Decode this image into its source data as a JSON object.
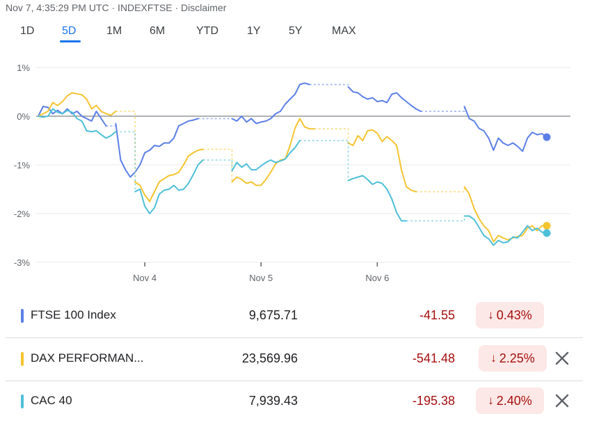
{
  "header": {
    "text": "Nov 7, 4:35:29 PM UTC · INDEXFTSE · Disclaimer"
  },
  "tabs": [
    {
      "label": "1D",
      "active": false
    },
    {
      "label": "5D",
      "active": true
    },
    {
      "label": "1M",
      "active": false
    },
    {
      "label": "6M",
      "active": false
    },
    {
      "label": "YTD",
      "active": false
    },
    {
      "label": "1Y",
      "active": false
    },
    {
      "label": "5Y",
      "active": false
    },
    {
      "label": "MAX",
      "active": false
    }
  ],
  "chart_data": {
    "type": "line",
    "y_unit": "%",
    "ylim": [
      -3,
      1
    ],
    "y_ticks": [
      "1%",
      "0%",
      "-1%",
      "-2%",
      "-3%"
    ],
    "x_ticks": [
      "Nov 4",
      "Nov 5",
      "Nov 6"
    ],
    "grid": true,
    "series": [
      {
        "name": "FTSE 100 Index",
        "color": "#5b7fe6",
        "segments": [
          [
            [
              0,
              0
            ],
            [
              0.25,
              0.2
            ],
            [
              0.5,
              0.18
            ],
            [
              0.75,
              0.05
            ],
            [
              1,
              0.12
            ],
            [
              1.25,
              0.05
            ],
            [
              1.5,
              0.15
            ],
            [
              1.75,
              0.05
            ],
            [
              2,
              0.1
            ],
            [
              2.25,
              0.0
            ],
            [
              2.5,
              -0.05
            ],
            [
              2.75,
              -0.1
            ],
            [
              3,
              0.1
            ],
            [
              3.25,
              -0.05
            ],
            [
              3.5,
              -0.2
            ]
          ],
          [
            [
              4,
              -0.15
            ],
            [
              4.25,
              -0.9
            ],
            [
              4.5,
              -1.1
            ],
            [
              4.75,
              -1.25
            ],
            [
              5,
              -1.15
            ],
            [
              5.25,
              -1.0
            ],
            [
              5.5,
              -0.75
            ],
            [
              5.75,
              -0.7
            ],
            [
              6,
              -0.6
            ],
            [
              6.25,
              -0.62
            ],
            [
              6.5,
              -0.55
            ],
            [
              6.75,
              -0.55
            ],
            [
              7,
              -0.45
            ],
            [
              7.25,
              -0.2
            ],
            [
              7.5,
              -0.15
            ],
            [
              7.75,
              -0.1
            ],
            [
              8,
              -0.08
            ],
            [
              8.25,
              -0.05
            ]
          ],
          [
            [
              10,
              -0.05
            ],
            [
              10.25,
              -0.1
            ],
            [
              10.5,
              0.0
            ],
            [
              10.75,
              -0.12
            ],
            [
              11,
              -0.05
            ],
            [
              11.25,
              -0.15
            ],
            [
              11.5,
              -0.12
            ],
            [
              11.75,
              -0.1
            ],
            [
              12,
              -0.05
            ],
            [
              12.25,
              0.05
            ],
            [
              12.5,
              0.1
            ],
            [
              12.75,
              0.25
            ],
            [
              13,
              0.35
            ],
            [
              13.25,
              0.45
            ],
            [
              13.5,
              0.65
            ],
            [
              13.75,
              0.68
            ],
            [
              14,
              0.65
            ]
          ],
          [
            [
              16,
              0.6
            ],
            [
              16.25,
              0.5
            ],
            [
              16.5,
              0.48
            ],
            [
              16.75,
              0.4
            ],
            [
              17,
              0.35
            ],
            [
              17.25,
              0.38
            ],
            [
              17.5,
              0.3
            ],
            [
              17.75,
              0.32
            ],
            [
              18,
              0.28
            ],
            [
              18.25,
              0.45
            ],
            [
              18.5,
              0.48
            ],
            [
              18.75,
              0.38
            ],
            [
              19,
              0.3
            ],
            [
              19.25,
              0.22
            ],
            [
              19.5,
              0.15
            ],
            [
              19.75,
              0.1
            ]
          ],
          [
            [
              22,
              0.2
            ],
            [
              22.25,
              -0.05
            ],
            [
              22.5,
              -0.1
            ],
            [
              22.75,
              -0.25
            ],
            [
              23,
              -0.3
            ],
            [
              23.25,
              -0.45
            ],
            [
              23.5,
              -0.7
            ],
            [
              23.75,
              -0.45
            ],
            [
              24,
              -0.55
            ],
            [
              24.25,
              -0.6
            ],
            [
              24.5,
              -0.55
            ],
            [
              24.75,
              -0.62
            ],
            [
              25,
              -0.72
            ],
            [
              25.25,
              -0.45
            ],
            [
              25.5,
              -0.33
            ],
            [
              25.75,
              -0.38
            ],
            [
              26,
              -0.36
            ],
            [
              26.25,
              -0.43
            ]
          ]
        ]
      },
      {
        "name": "DAX PERFORMANCE-INDEX",
        "color": "#f4c430",
        "segments": [
          [
            [
              0,
              0
            ],
            [
              0.25,
              0.05
            ],
            [
              0.5,
              0.1
            ],
            [
              0.75,
              0.28
            ],
            [
              1,
              0.22
            ],
            [
              1.25,
              0.3
            ],
            [
              1.5,
              0.42
            ],
            [
              1.75,
              0.48
            ],
            [
              2,
              0.46
            ],
            [
              2.25,
              0.44
            ],
            [
              2.5,
              0.35
            ],
            [
              2.75,
              0.15
            ],
            [
              3,
              0.22
            ],
            [
              3.25,
              0.1
            ],
            [
              3.5,
              0.05
            ],
            [
              3.75,
              0.02
            ],
            [
              4,
              0.1
            ]
          ],
          [
            [
              5,
              -1.35
            ],
            [
              5.25,
              -1.42
            ],
            [
              5.5,
              -1.62
            ],
            [
              5.75,
              -1.75
            ],
            [
              6,
              -1.55
            ],
            [
              6.25,
              -1.35
            ],
            [
              6.5,
              -1.28
            ],
            [
              6.75,
              -1.22
            ],
            [
              7,
              -1.2
            ],
            [
              7.25,
              -1.15
            ],
            [
              7.5,
              -1.0
            ],
            [
              7.75,
              -0.82
            ],
            [
              8,
              -0.75
            ],
            [
              8.25,
              -0.7
            ],
            [
              8.5,
              -0.68
            ]
          ],
          [
            [
              10,
              -1.35
            ],
            [
              10.25,
              -1.25
            ],
            [
              10.5,
              -1.3
            ],
            [
              10.75,
              -1.38
            ],
            [
              11,
              -1.35
            ],
            [
              11.25,
              -1.42
            ],
            [
              11.5,
              -1.42
            ],
            [
              11.75,
              -1.3
            ],
            [
              12,
              -1.15
            ],
            [
              12.25,
              -0.98
            ],
            [
              12.5,
              -0.9
            ],
            [
              12.75,
              -0.88
            ],
            [
              13,
              -0.6
            ],
            [
              13.25,
              -0.25
            ],
            [
              13.5,
              -0.05
            ],
            [
              13.75,
              -0.22
            ],
            [
              14,
              -0.26
            ],
            [
              14.25,
              -0.26
            ]
          ],
          [
            [
              16,
              -0.55
            ],
            [
              16.25,
              -0.6
            ],
            [
              16.5,
              -0.4
            ],
            [
              16.75,
              -0.5
            ],
            [
              17,
              -0.3
            ],
            [
              17.25,
              -0.28
            ],
            [
              17.5,
              -0.35
            ],
            [
              17.75,
              -0.52
            ],
            [
              18,
              -0.42
            ],
            [
              18.25,
              -0.5
            ],
            [
              18.5,
              -0.6
            ],
            [
              18.75,
              -1.1
            ],
            [
              19,
              -1.45
            ],
            [
              19.25,
              -1.52
            ],
            [
              19.5,
              -1.55
            ]
          ],
          [
            [
              22,
              -1.45
            ],
            [
              22.25,
              -1.6
            ],
            [
              22.5,
              -1.9
            ],
            [
              22.75,
              -2.1
            ],
            [
              23,
              -2.25
            ],
            [
              23.25,
              -2.35
            ],
            [
              23.5,
              -2.58
            ],
            [
              23.75,
              -2.45
            ],
            [
              24,
              -2.5
            ],
            [
              24.25,
              -2.54
            ],
            [
              24.5,
              -2.5
            ],
            [
              24.75,
              -2.47
            ],
            [
              25,
              -2.45
            ],
            [
              25.25,
              -2.3
            ],
            [
              25.5,
              -2.25
            ],
            [
              25.75,
              -2.35
            ],
            [
              26,
              -2.25
            ],
            [
              26.25,
              -2.25
            ]
          ]
        ]
      },
      {
        "name": "CAC 40",
        "color": "#4ebfd8",
        "segments": [
          [
            [
              0,
              0
            ],
            [
              0.25,
              -0.02
            ],
            [
              0.5,
              0.0
            ],
            [
              0.75,
              0.15
            ],
            [
              1,
              0.08
            ],
            [
              1.25,
              0.05
            ],
            [
              1.5,
              0.12
            ],
            [
              1.75,
              0.08
            ],
            [
              2,
              -0.05
            ],
            [
              2.25,
              -0.1
            ],
            [
              2.5,
              -0.3
            ],
            [
              2.75,
              -0.32
            ],
            [
              3,
              -0.3
            ],
            [
              3.25,
              -0.38
            ],
            [
              3.5,
              -0.45
            ],
            [
              3.75,
              -0.4
            ],
            [
              4,
              -0.32
            ]
          ],
          [
            [
              5,
              -1.55
            ],
            [
              5.25,
              -1.5
            ],
            [
              5.5,
              -1.85
            ],
            [
              5.75,
              -2.0
            ],
            [
              6,
              -1.88
            ],
            [
              6.25,
              -1.6
            ],
            [
              6.5,
              -1.52
            ],
            [
              6.75,
              -1.5
            ],
            [
              7,
              -1.42
            ],
            [
              7.25,
              -1.52
            ],
            [
              7.5,
              -1.5
            ],
            [
              7.75,
              -1.38
            ],
            [
              8,
              -1.2
            ],
            [
              8.25,
              -1.0
            ],
            [
              8.5,
              -0.9
            ]
          ],
          [
            [
              10,
              -1.12
            ],
            [
              10.25,
              -0.95
            ],
            [
              10.5,
              -1.05
            ],
            [
              10.75,
              -0.98
            ],
            [
              11,
              -1.1
            ],
            [
              11.25,
              -1.1
            ],
            [
              11.5,
              -1.02
            ],
            [
              11.75,
              -0.95
            ],
            [
              12,
              -0.9
            ],
            [
              12.25,
              -0.95
            ],
            [
              12.5,
              -0.92
            ],
            [
              12.75,
              -0.88
            ],
            [
              13,
              -0.75
            ],
            [
              13.25,
              -0.65
            ],
            [
              13.5,
              -0.5
            ]
          ],
          [
            [
              16,
              -1.32
            ],
            [
              16.25,
              -1.28
            ],
            [
              16.5,
              -1.25
            ],
            [
              16.75,
              -1.22
            ],
            [
              17,
              -1.3
            ],
            [
              17.25,
              -1.4
            ],
            [
              17.5,
              -1.35
            ],
            [
              17.75,
              -1.38
            ],
            [
              18,
              -1.5
            ],
            [
              18.25,
              -1.7
            ],
            [
              18.5,
              -1.98
            ],
            [
              18.75,
              -2.15
            ],
            [
              19,
              -2.15
            ]
          ],
          [
            [
              22,
              -2.05
            ],
            [
              22.25,
              -2.05
            ],
            [
              22.5,
              -2.12
            ],
            [
              22.75,
              -2.28
            ],
            [
              23,
              -2.45
            ],
            [
              23.25,
              -2.52
            ],
            [
              23.5,
              -2.65
            ],
            [
              23.75,
              -2.55
            ],
            [
              24,
              -2.6
            ],
            [
              24.25,
              -2.58
            ],
            [
              24.5,
              -2.48
            ],
            [
              24.75,
              -2.5
            ],
            [
              25,
              -2.38
            ],
            [
              25.25,
              -2.25
            ],
            [
              25.5,
              -2.35
            ],
            [
              25.75,
              -2.3
            ],
            [
              26,
              -2.38
            ],
            [
              26.25,
              -2.4
            ]
          ]
        ]
      }
    ]
  },
  "rows": [
    {
      "name": "FTSE 100 Index",
      "color": "#5b7fe6",
      "price": "9,675.71",
      "change": "-41.55",
      "pct": "0.43%",
      "removable": false
    },
    {
      "name": "DAX PERFORMAN...",
      "color": "#f4c430",
      "price": "23,569.96",
      "change": "-541.48",
      "pct": "2.25%",
      "removable": true
    },
    {
      "name": "CAC 40",
      "color": "#4ebfd8",
      "price": "7,939.43",
      "change": "-195.38",
      "pct": "2.40%",
      "removable": true
    }
  ],
  "icons": {
    "down_arrow": "arrow-down-icon",
    "close": "close-icon"
  }
}
